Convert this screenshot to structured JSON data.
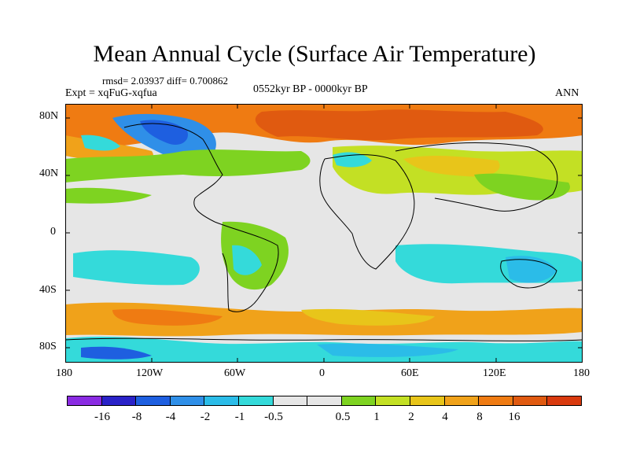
{
  "title": "Mean Annual Cycle (Surface Air Temperature)",
  "stats_line": "rmsd= 2.03937 diff= 0.700862",
  "experiment": "Expt = xqFuG-xqfua",
  "period": "0552kyr BP - 0000kyr BP",
  "season": "ANN",
  "y_ticks": [
    "80N",
    "40N",
    "0",
    "40S",
    "80S"
  ],
  "x_ticks": [
    "180",
    "120W",
    "60W",
    "0",
    "60E",
    "120E",
    "180"
  ],
  "colorbar": {
    "colors": [
      "#8a2be2",
      "#2a22c8",
      "#1e5fe0",
      "#2f8fe8",
      "#2bbce8",
      "#34dada",
      "#e6e6e6",
      "#e6e6e6",
      "#7ed321",
      "#c3e024",
      "#e8c51a",
      "#f0a21a",
      "#ef7b12",
      "#e05a10",
      "#d93a0e"
    ],
    "labels": [
      "-16",
      "-8",
      "-4",
      "-2",
      "-1",
      "-0.5",
      "0.5",
      "1",
      "2",
      "4",
      "8",
      "16"
    ]
  }
}
